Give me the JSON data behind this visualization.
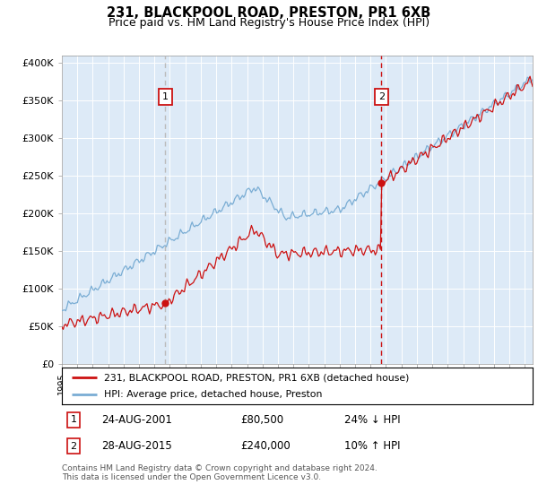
{
  "title": "231, BLACKPOOL ROAD, PRESTON, PR1 6XB",
  "subtitle": "Price paid vs. HM Land Registry's House Price Index (HPI)",
  "yticks": [
    0,
    50000,
    100000,
    150000,
    200000,
    250000,
    300000,
    350000,
    400000
  ],
  "ytick_labels": [
    "£0",
    "£50K",
    "£100K",
    "£150K",
    "£200K",
    "£250K",
    "£300K",
    "£350K",
    "£400K"
  ],
  "bg_color": "#ddeaf7",
  "fig_bg": "#ffffff",
  "legend_line1": "231, BLACKPOOL ROAD, PRESTON, PR1 6XB (detached house)",
  "legend_line2": "HPI: Average price, detached house, Preston",
  "purchase1_date": "24-AUG-2001",
  "purchase1_price": 80500,
  "purchase1_note": "24% ↓ HPI",
  "purchase2_date": "28-AUG-2015",
  "purchase2_price": 240000,
  "purchase2_note": "10% ↑ HPI",
  "footer": "Contains HM Land Registry data © Crown copyright and database right 2024.\nThis data is licensed under the Open Government Licence v3.0.",
  "hpi_color": "#7aadd4",
  "price_color": "#cc1111",
  "vline1_color": "#bbbbbb",
  "vline2_color": "#cc1111",
  "marker_color": "#cc1111",
  "purchase1_x": 2001.7,
  "purchase2_x": 2015.7,
  "xlim_left": 1995.0,
  "xlim_right": 2025.5,
  "ylim_top": 410000
}
